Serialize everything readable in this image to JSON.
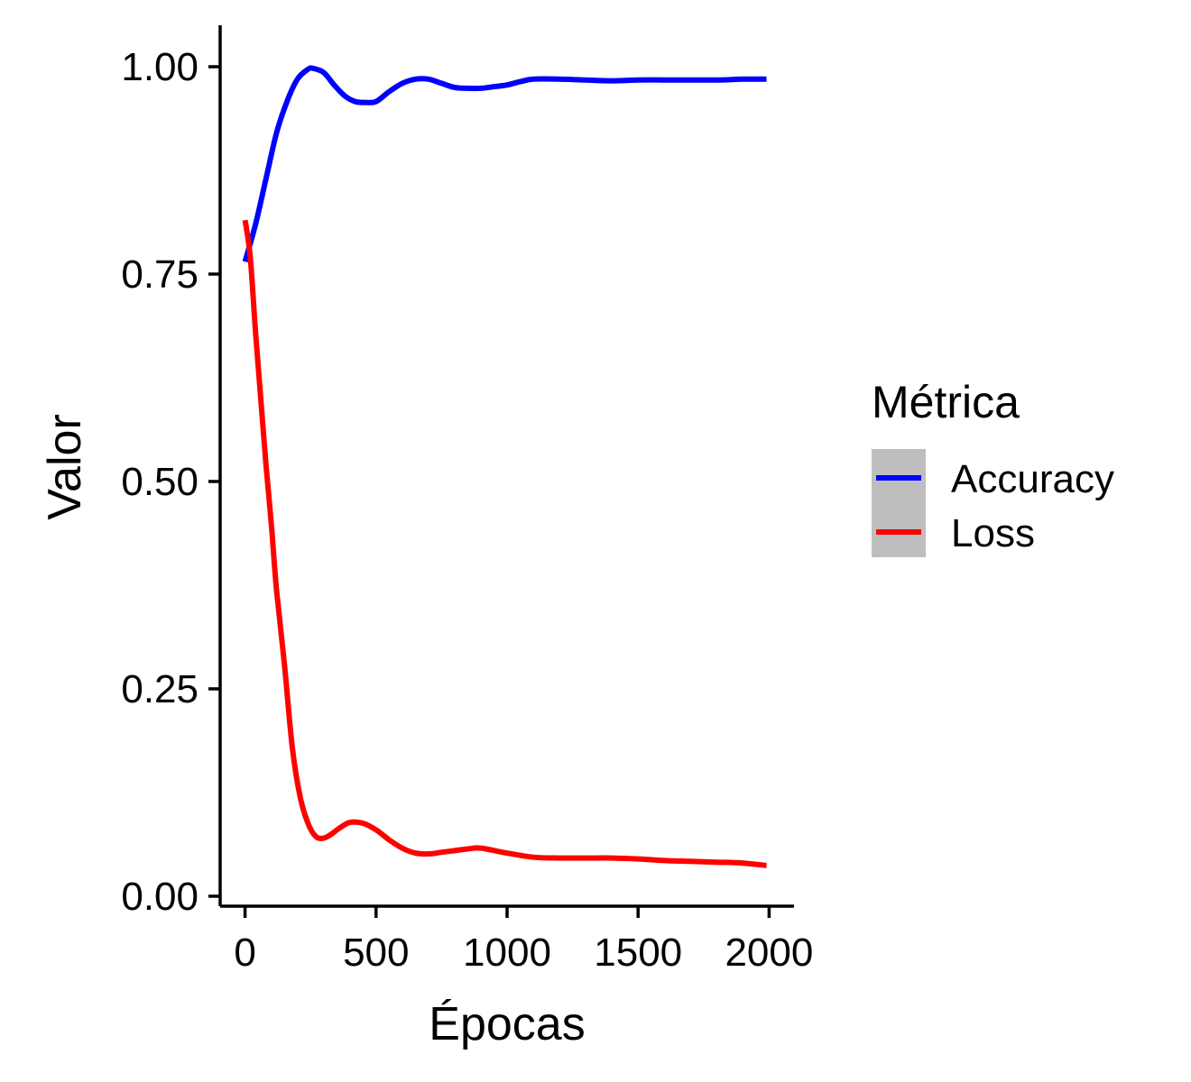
{
  "chart_data": {
    "type": "line",
    "title": "",
    "xlabel": "Épocas",
    "ylabel": "Valor",
    "xlim": [
      -95,
      2095
    ],
    "ylim": [
      -0.012,
      1.05
    ],
    "x_ticks": [
      0,
      500,
      1000,
      1500,
      2000
    ],
    "x_tick_labels": [
      "0",
      "500",
      "1000",
      "1500",
      "2000"
    ],
    "y_ticks": [
      0,
      0.25,
      0.5,
      0.75,
      1.0
    ],
    "y_tick_labels": [
      "0.00",
      "0.25",
      "0.50",
      "0.75",
      "1.00"
    ],
    "grid": false,
    "legend": {
      "title": "Métrica",
      "position": "right"
    },
    "series": [
      {
        "name": "Accuracy",
        "color": "#0000FF",
        "x": [
          0,
          40,
          80,
          120,
          160,
          200,
          240,
          260,
          300,
          340,
          380,
          420,
          460,
          500,
          550,
          600,
          650,
          700,
          750,
          800,
          850,
          900,
          950,
          1000,
          1050,
          1100,
          1200,
          1300,
          1400,
          1500,
          1600,
          1700,
          1800,
          1900,
          1990
        ],
        "y": [
          0.765,
          0.81,
          0.865,
          0.92,
          0.958,
          0.985,
          0.997,
          0.998,
          0.993,
          0.978,
          0.965,
          0.958,
          0.957,
          0.958,
          0.97,
          0.98,
          0.985,
          0.985,
          0.98,
          0.975,
          0.974,
          0.974,
          0.976,
          0.978,
          0.982,
          0.985,
          0.985,
          0.984,
          0.983,
          0.984,
          0.984,
          0.984,
          0.984,
          0.985,
          0.985
        ]
      },
      {
        "name": "Loss",
        "color": "#FF0000",
        "x": [
          0,
          20,
          40,
          60,
          80,
          100,
          120,
          150,
          180,
          210,
          240,
          270,
          300,
          330,
          360,
          400,
          450,
          500,
          550,
          600,
          650,
          700,
          750,
          800,
          850,
          900,
          1000,
          1100,
          1200,
          1300,
          1400,
          1500,
          1600,
          1700,
          1800,
          1900,
          1990
        ],
        "y": [
          0.815,
          0.77,
          0.68,
          0.6,
          0.52,
          0.45,
          0.37,
          0.28,
          0.18,
          0.12,
          0.088,
          0.072,
          0.07,
          0.075,
          0.082,
          0.089,
          0.088,
          0.08,
          0.068,
          0.058,
          0.052,
          0.051,
          0.053,
          0.055,
          0.057,
          0.058,
          0.052,
          0.047,
          0.046,
          0.046,
          0.046,
          0.045,
          0.043,
          0.042,
          0.041,
          0.04,
          0.037
        ]
      }
    ]
  }
}
